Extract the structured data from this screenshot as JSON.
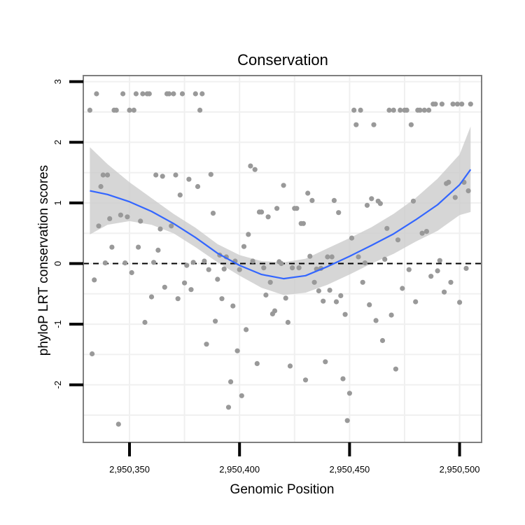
{
  "chart_data": {
    "type": "scatter",
    "title": "Conservation",
    "xlabel": "Genomic Position",
    "ylabel": "phyloP LRT conservation scores",
    "xlim": [
      2950329,
      2950510
    ],
    "ylim": [
      -2.95,
      3.1
    ],
    "x_ticks": [
      2950350,
      2950400,
      2950450,
      2950500
    ],
    "x_tick_labels": [
      "2,950,350",
      "2,950,400",
      "2,950,450",
      "2,950,500"
    ],
    "y_ticks": [
      -2,
      -1,
      0,
      1,
      2,
      3
    ],
    "y_tick_labels": [
      "-2",
      "-1",
      "0",
      "1",
      "2",
      "3"
    ],
    "reference_line": {
      "y": 0,
      "style": "dashed"
    },
    "colors": {
      "points": "#999999",
      "smooth": "#3366ff",
      "ribbon": "#cccccc",
      "grid": "#f0f0f0",
      "border": "#7f7f7f",
      "refline": "#000000"
    },
    "points": [
      [
        2950332,
        2.53
      ],
      [
        2950333,
        -1.49
      ],
      [
        2950334,
        -0.27
      ],
      [
        2950335,
        2.8
      ],
      [
        2950336,
        0.62
      ],
      [
        2950337,
        1.27
      ],
      [
        2950338,
        1.46
      ],
      [
        2950339,
        0.01
      ],
      [
        2950340,
        1.46
      ],
      [
        2950341,
        0.74
      ],
      [
        2950342,
        0.27
      ],
      [
        2950343,
        2.53
      ],
      [
        2950344,
        2.53
      ],
      [
        2950345,
        -2.65
      ],
      [
        2950346,
        0.8
      ],
      [
        2950347,
        2.8
      ],
      [
        2950348,
        0.01
      ],
      [
        2950349,
        0.77
      ],
      [
        2950350,
        2.53
      ],
      [
        2950351,
        -0.15
      ],
      [
        2950352,
        2.53
      ],
      [
        2950353,
        2.8
      ],
      [
        2950354,
        0.27
      ],
      [
        2950355,
        0.7
      ],
      [
        2950356,
        2.8
      ],
      [
        2950357,
        -0.97
      ],
      [
        2950358,
        2.8
      ],
      [
        2950359,
        2.8
      ],
      [
        2950360,
        -0.55
      ],
      [
        2950361,
        0.02
      ],
      [
        2950362,
        1.46
      ],
      [
        2950363,
        0.22
      ],
      [
        2950364,
        0.57
      ],
      [
        2950365,
        1.44
      ],
      [
        2950366,
        -0.39
      ],
      [
        2950367,
        2.8
      ],
      [
        2950368,
        2.8
      ],
      [
        2950369,
        0.62
      ],
      [
        2950370,
        2.8
      ],
      [
        2950371,
        1.46
      ],
      [
        2950372,
        -0.58
      ],
      [
        2950373,
        1.13
      ],
      [
        2950374,
        2.8
      ],
      [
        2950375,
        -0.32
      ],
      [
        2950376,
        -0.03
      ],
      [
        2950377,
        1.39
      ],
      [
        2950378,
        -0.43
      ],
      [
        2950379,
        0.02
      ],
      [
        2950380,
        2.8
      ],
      [
        2950381,
        1.27
      ],
      [
        2950382,
        2.53
      ],
      [
        2950383,
        2.8
      ],
      [
        2950384,
        0.04
      ],
      [
        2950385,
        -1.33
      ],
      [
        2950386,
        -0.1
      ],
      [
        2950387,
        1.47
      ],
      [
        2950388,
        0.83
      ],
      [
        2950389,
        -0.95
      ],
      [
        2950390,
        -0.26
      ],
      [
        2950391,
        0.14
      ],
      [
        2950392,
        -0.58
      ],
      [
        2950393,
        -0.09
      ],
      [
        2950394,
        0.11
      ],
      [
        2950395,
        -2.37
      ],
      [
        2950396,
        -1.95
      ],
      [
        2950397,
        -0.7
      ],
      [
        2950398,
        0.04
      ],
      [
        2950399,
        -1.44
      ],
      [
        2950400,
        -0.1
      ],
      [
        2950401,
        -2.18
      ],
      [
        2950402,
        0.28
      ],
      [
        2950403,
        -1.09
      ],
      [
        2950404,
        0.48
      ],
      [
        2950405,
        1.61
      ],
      [
        2950406,
        0.04
      ],
      [
        2950407,
        1.55
      ],
      [
        2950408,
        -1.65
      ],
      [
        2950409,
        0.85
      ],
      [
        2950410,
        0.85
      ],
      [
        2950411,
        -0.07
      ],
      [
        2950412,
        -0.52
      ],
      [
        2950413,
        0.77
      ],
      [
        2950414,
        -0.31
      ],
      [
        2950415,
        -0.83
      ],
      [
        2950416,
        -0.78
      ],
      [
        2950417,
        0.91
      ],
      [
        2950418,
        0.03
      ],
      [
        2950419,
        0.0
      ],
      [
        2950420,
        1.29
      ],
      [
        2950421,
        -0.57
      ],
      [
        2950422,
        -0.97
      ],
      [
        2950423,
        -1.69
      ],
      [
        2950424,
        -0.07
      ],
      [
        2950425,
        0.91
      ],
      [
        2950426,
        0.91
      ],
      [
        2950427,
        -0.07
      ],
      [
        2950428,
        0.66
      ],
      [
        2950429,
        0.66
      ],
      [
        2950430,
        -1.92
      ],
      [
        2950431,
        1.16
      ],
      [
        2950432,
        0.12
      ],
      [
        2950433,
        1.04
      ],
      [
        2950434,
        -0.31
      ],
      [
        2950435,
        -0.09
      ],
      [
        2950436,
        -0.45
      ],
      [
        2950437,
        -0.08
      ],
      [
        2950438,
        -0.62
      ],
      [
        2950439,
        -1.62
      ],
      [
        2950440,
        0.11
      ],
      [
        2950441,
        -0.44
      ],
      [
        2950442,
        0.11
      ],
      [
        2950443,
        1.04
      ],
      [
        2950444,
        -0.63
      ],
      [
        2950445,
        0.84
      ],
      [
        2950446,
        -0.53
      ],
      [
        2950447,
        -1.9
      ],
      [
        2950448,
        -0.84
      ],
      [
        2950449,
        -2.59
      ],
      [
        2950450,
        -2.14
      ],
      [
        2950451,
        0.42
      ],
      [
        2950452,
        2.53
      ],
      [
        2950453,
        2.29
      ],
      [
        2950454,
        0.11
      ],
      [
        2950455,
        2.53
      ],
      [
        2950456,
        -0.31
      ],
      [
        2950457,
        0.01
      ],
      [
        2950458,
        0.96
      ],
      [
        2950459,
        -0.68
      ],
      [
        2950460,
        1.07
      ],
      [
        2950461,
        2.29
      ],
      [
        2950462,
        -0.94
      ],
      [
        2950463,
        1.03
      ],
      [
        2950464,
        0.99
      ],
      [
        2950465,
        -1.27
      ],
      [
        2950466,
        0.07
      ],
      [
        2950467,
        0.58
      ],
      [
        2950468,
        2.53
      ],
      [
        2950469,
        -0.85
      ],
      [
        2950470,
        2.53
      ],
      [
        2950471,
        -1.74
      ],
      [
        2950472,
        0.39
      ],
      [
        2950473,
        2.53
      ],
      [
        2950474,
        -0.41
      ],
      [
        2950475,
        2.53
      ],
      [
        2950476,
        2.53
      ],
      [
        2950477,
        -0.1
      ],
      [
        2950478,
        2.29
      ],
      [
        2950479,
        1.03
      ],
      [
        2950480,
        -0.63
      ],
      [
        2950481,
        2.53
      ],
      [
        2950482,
        2.53
      ],
      [
        2950483,
        0.5
      ],
      [
        2950484,
        2.53
      ],
      [
        2950485,
        0.53
      ],
      [
        2950486,
        2.53
      ],
      [
        2950487,
        -0.21
      ],
      [
        2950488,
        2.63
      ],
      [
        2950489,
        2.63
      ],
      [
        2950490,
        -0.12
      ],
      [
        2950491,
        0.05
      ],
      [
        2950492,
        2.63
      ],
      [
        2950493,
        -0.47
      ],
      [
        2950494,
        1.32
      ],
      [
        2950495,
        1.34
      ],
      [
        2950496,
        -0.31
      ],
      [
        2950497,
        2.63
      ],
      [
        2950498,
        1.09
      ],
      [
        2950499,
        2.63
      ],
      [
        2950500,
        -0.64
      ],
      [
        2950501,
        2.63
      ],
      [
        2950502,
        1.34
      ],
      [
        2950503,
        -0.08
      ],
      [
        2950504,
        1.2
      ],
      [
        2950505,
        2.63
      ]
    ],
    "smooth": {
      "x": [
        2950332,
        2950340,
        2950350,
        2950360,
        2950370,
        2950380,
        2950390,
        2950400,
        2950410,
        2950420,
        2950430,
        2950440,
        2950450,
        2950460,
        2950470,
        2950480,
        2950490,
        2950500,
        2950505
      ],
      "y": [
        1.2,
        1.14,
        1.02,
        0.86,
        0.66,
        0.43,
        0.17,
        -0.03,
        -0.18,
        -0.25,
        -0.2,
        -0.05,
        0.12,
        0.3,
        0.49,
        0.72,
        0.97,
        1.3,
        1.55
      ],
      "lower": [
        0.48,
        0.64,
        0.7,
        0.64,
        0.5,
        0.27,
        0.02,
        -0.2,
        -0.4,
        -0.52,
        -0.48,
        -0.35,
        -0.18,
        -0.0,
        0.16,
        0.36,
        0.54,
        0.8,
        0.85
      ],
      "upper": [
        1.92,
        1.64,
        1.34,
        1.08,
        0.82,
        0.59,
        0.32,
        0.14,
        0.04,
        0.02,
        0.08,
        0.25,
        0.42,
        0.6,
        0.82,
        1.08,
        1.4,
        1.8,
        2.26
      ]
    }
  }
}
